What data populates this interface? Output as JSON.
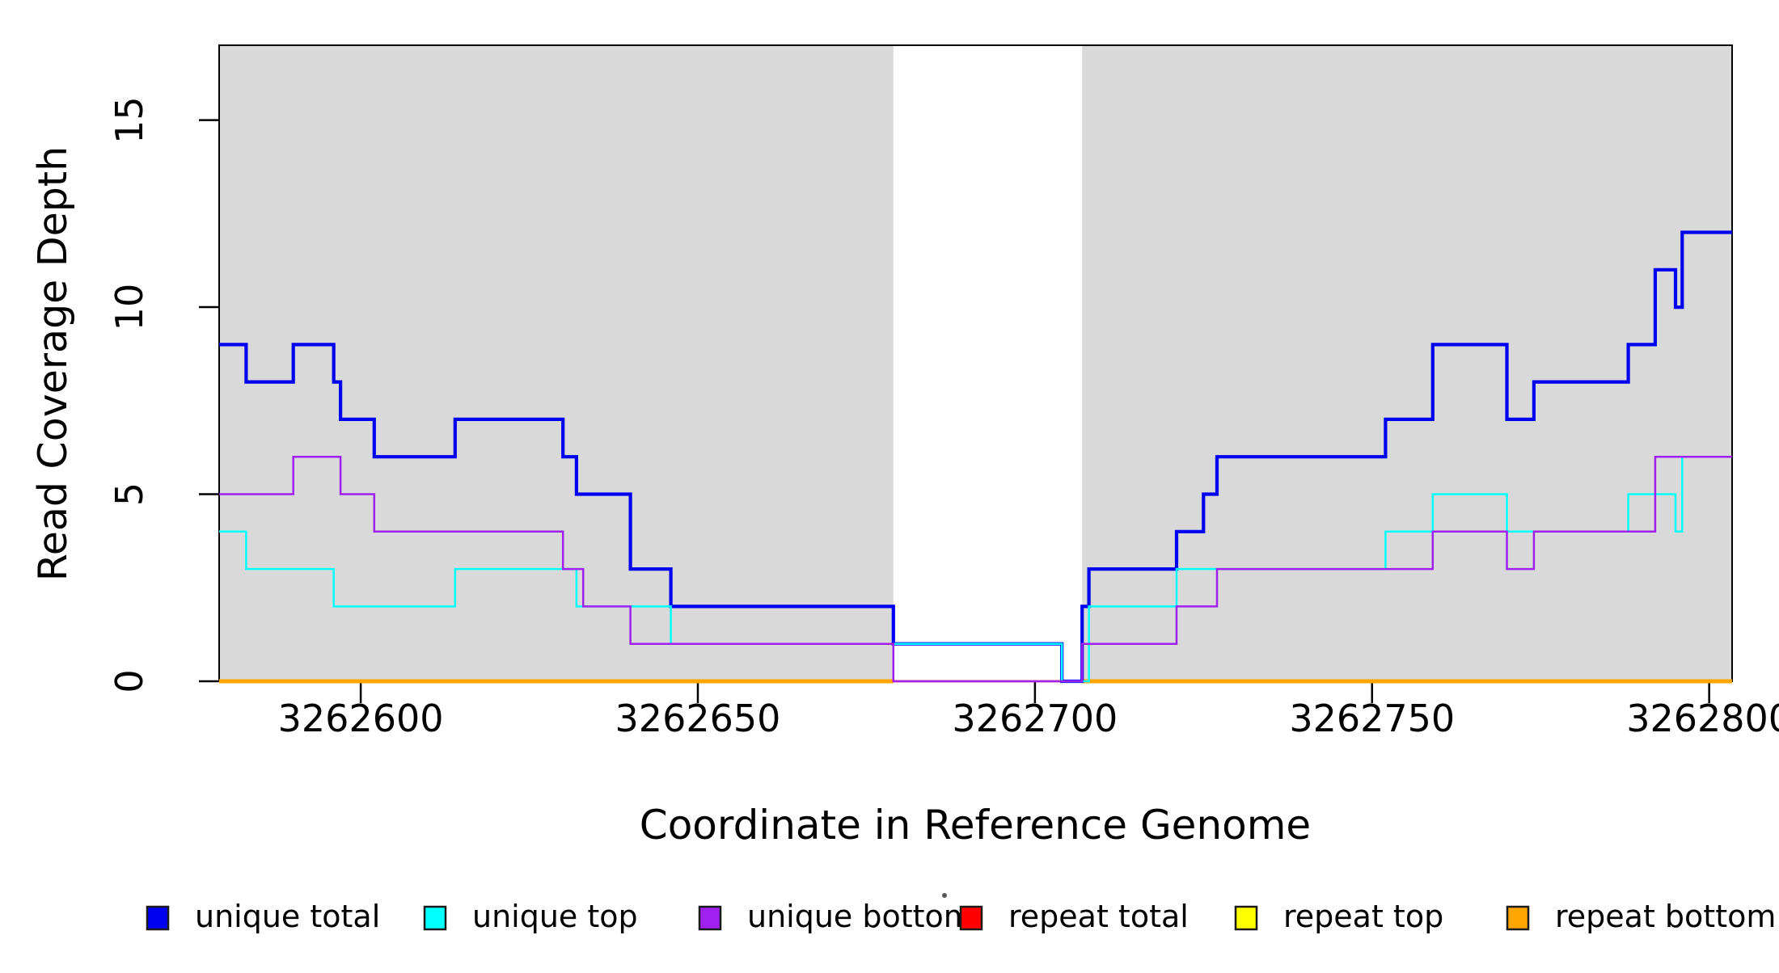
{
  "chart_data": {
    "type": "line",
    "subtype": "step-coverage",
    "xlabel": "Coordinate in Reference Genome",
    "ylabel": "Read Coverage Depth",
    "xlim": [
      3262579,
      3262803.4
    ],
    "ylim": [
      0,
      17
    ],
    "x_ticks": [
      3262600,
      3262650,
      3262700,
      3262750,
      3262800
    ],
    "y_ticks": [
      0,
      5,
      10,
      15
    ],
    "grid": false,
    "panel_color": "#d9d9d9",
    "shaded_regions": [
      [
        3262579,
        3262679
      ],
      [
        3262707,
        3262803.4
      ]
    ],
    "unshaded_gap": [
      3262679,
      3262707
    ],
    "series": [
      {
        "name": "repeat total",
        "color": "#ff0000",
        "width": 2.5,
        "parts": [
          [
            [
              3262579,
              0
            ],
            [
              3262803.4,
              0
            ]
          ]
        ]
      },
      {
        "name": "repeat top",
        "color": "#ffff00",
        "width": 2.5,
        "parts": [
          [
            [
              3262579,
              0
            ],
            [
              3262679,
              0
            ]
          ],
          [
            [
              3262707,
              0
            ],
            [
              3262803.4,
              0
            ]
          ]
        ]
      },
      {
        "name": "repeat bottom",
        "color": "#ffa500",
        "width": 5,
        "parts": [
          [
            [
              3262579,
              0
            ],
            [
              3262679,
              0
            ]
          ],
          [
            [
              3262707,
              0
            ],
            [
              3262803.4,
              0
            ]
          ]
        ]
      },
      {
        "name": "unique total",
        "color": "#0000f0",
        "width": 4.2,
        "parts": [
          [
            [
              3262579,
              9
            ],
            [
              3262583,
              8
            ],
            [
              3262590,
              9
            ],
            [
              3262596,
              8
            ],
            [
              3262597,
              7
            ],
            [
              3262602,
              6
            ],
            [
              3262614,
              7
            ],
            [
              3262630,
              6
            ],
            [
              3262632,
              5
            ],
            [
              3262640,
              3
            ],
            [
              3262646,
              2
            ],
            [
              3262679,
              1
            ],
            [
              3262704,
              0
            ],
            [
              3262707,
              2
            ],
            [
              3262708,
              3
            ],
            [
              3262721,
              4
            ],
            [
              3262725,
              5
            ],
            [
              3262727,
              6
            ],
            [
              3262752,
              7
            ],
            [
              3262759,
              9
            ],
            [
              3262770,
              7
            ],
            [
              3262774,
              8
            ],
            [
              3262788,
              9
            ],
            [
              3262792,
              11
            ],
            [
              3262795,
              10
            ],
            [
              3262796,
              12
            ],
            [
              3262803.4,
              12
            ]
          ]
        ]
      },
      {
        "name": "unique top",
        "color": "#00ffff",
        "width": 2.5,
        "parts": [
          [
            [
              3262579,
              4
            ],
            [
              3262583,
              3
            ],
            [
              3262596,
              2
            ],
            [
              3262614,
              3
            ],
            [
              3262632,
              2
            ],
            [
              3262646,
              1
            ],
            [
              3262704,
              0
            ],
            [
              3262708,
              2
            ],
            [
              3262721,
              3
            ],
            [
              3262752,
              4
            ],
            [
              3262759,
              5
            ],
            [
              3262770,
              4
            ],
            [
              3262788,
              5
            ],
            [
              3262795,
              4
            ],
            [
              3262796,
              6
            ],
            [
              3262803.4,
              6
            ]
          ]
        ]
      },
      {
        "name": "unique bottom",
        "color": "#a020f0",
        "width": 2.5,
        "parts": [
          [
            [
              3262579,
              5
            ],
            [
              3262590,
              6
            ],
            [
              3262597,
              5
            ],
            [
              3262602,
              4
            ],
            [
              3262630,
              3
            ],
            [
              3262633,
              2
            ],
            [
              3262640,
              1
            ],
            [
              3262679,
              0
            ],
            [
              3262707,
              1
            ],
            [
              3262721,
              2
            ],
            [
              3262727,
              3
            ],
            [
              3262759,
              4
            ],
            [
              3262770,
              3
            ],
            [
              3262774,
              4
            ],
            [
              3262792,
              6
            ],
            [
              3262803.4,
              6
            ]
          ]
        ]
      }
    ],
    "legend": {
      "position": "bottom",
      "entries": [
        {
          "label": "unique total",
          "color": "#0000f0"
        },
        {
          "label": "unique top",
          "color": "#00ffff"
        },
        {
          "label": "unique bottom",
          "color": "#a020f0"
        },
        {
          "label": "repeat total",
          "color": "#ff0000"
        },
        {
          "label": "repeat top",
          "color": "#ffff00"
        },
        {
          "label": "repeat bottom",
          "color": "#ffa500"
        }
      ]
    }
  }
}
